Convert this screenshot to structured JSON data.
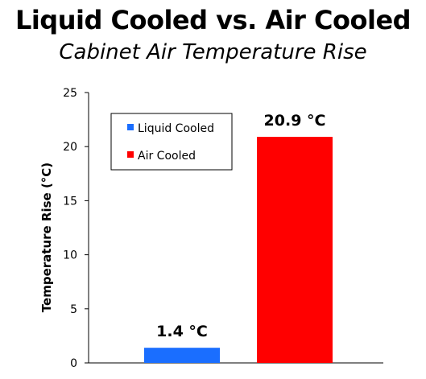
{
  "chart_data": {
    "type": "bar",
    "title": "Liquid Cooled vs. Air Cooled",
    "subtitle": "Cabinet Air Temperature Rise",
    "ylabel": "Temperature Rise (°C)",
    "xlabel": "",
    "ylim": [
      0,
      25
    ],
    "yticks": [
      0,
      5,
      10,
      15,
      20,
      25
    ],
    "grid": false,
    "legend_position": "top-left",
    "series": [
      {
        "name": "Liquid Cooled",
        "value": 1.4,
        "label": "1.4 °C",
        "color": "#1a6eff"
      },
      {
        "name": "Air Cooled",
        "value": 20.9,
        "label": "20.9 °C",
        "color": "#ff0000"
      }
    ]
  }
}
